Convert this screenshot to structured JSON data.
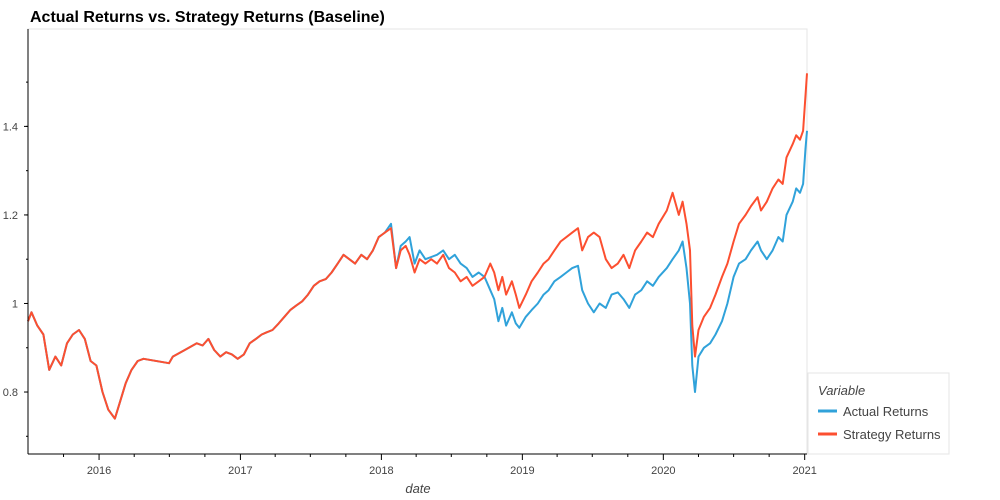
{
  "chart_data": {
    "type": "line",
    "title": "Actual Returns vs. Strategy Returns (Baseline)",
    "xlabel": "date",
    "ylabel": "",
    "xlim": [
      "2015-07-01",
      "2021-01-07"
    ],
    "ylim": [
      0.66,
      1.62
    ],
    "x_ticks": [
      "2016",
      "2017",
      "2018",
      "2019",
      "2020",
      "2021"
    ],
    "y_ticks": [
      "0.8",
      "1",
      "1.2",
      "1.4"
    ],
    "grid": false,
    "legend_placement": "bottom-right",
    "legend_title": "Variable",
    "series": [
      {
        "name": "Actual Returns",
        "color": "#30a2da",
        "points": [
          [
            "2015-07-01",
            0.96
          ],
          [
            "2015-07-10",
            0.98
          ],
          [
            "2015-07-25",
            0.95
          ],
          [
            "2015-08-10",
            0.93
          ],
          [
            "2015-08-25",
            0.85
          ],
          [
            "2015-09-10",
            0.88
          ],
          [
            "2015-09-25",
            0.86
          ],
          [
            "2015-10-10",
            0.91
          ],
          [
            "2015-10-25",
            0.93
          ],
          [
            "2015-11-10",
            0.94
          ],
          [
            "2015-11-25",
            0.92
          ],
          [
            "2015-12-10",
            0.87
          ],
          [
            "2015-12-25",
            0.86
          ],
          [
            "2016-01-10",
            0.8
          ],
          [
            "2016-01-25",
            0.76
          ],
          [
            "2016-02-11",
            0.74
          ],
          [
            "2016-02-25",
            0.78
          ],
          [
            "2016-03-10",
            0.82
          ],
          [
            "2016-03-25",
            0.85
          ],
          [
            "2016-04-10",
            0.87
          ],
          [
            "2016-04-25",
            0.875
          ],
          [
            "2016-06-30",
            0.865
          ],
          [
            "2016-07-10",
            0.88
          ],
          [
            "2016-08-10",
            0.895
          ],
          [
            "2016-09-10",
            0.91
          ],
          [
            "2016-09-25",
            0.905
          ],
          [
            "2016-10-10",
            0.92
          ],
          [
            "2016-10-25",
            0.895
          ],
          [
            "2016-11-10",
            0.88
          ],
          [
            "2016-11-25",
            0.89
          ],
          [
            "2016-12-10",
            0.885
          ],
          [
            "2016-12-25",
            0.875
          ],
          [
            "2017-01-10",
            0.885
          ],
          [
            "2017-01-25",
            0.91
          ],
          [
            "2017-02-10",
            0.92
          ],
          [
            "2017-02-25",
            0.93
          ],
          [
            "2017-03-10",
            0.935
          ],
          [
            "2017-03-25",
            0.94
          ],
          [
            "2017-04-10",
            0.955
          ],
          [
            "2017-04-25",
            0.97
          ],
          [
            "2017-05-10",
            0.985
          ],
          [
            "2017-05-25",
            0.995
          ],
          [
            "2017-06-10",
            1.005
          ],
          [
            "2017-06-25",
            1.02
          ],
          [
            "2017-07-10",
            1.04
          ],
          [
            "2017-07-25",
            1.05
          ],
          [
            "2017-08-10",
            1.055
          ],
          [
            "2017-08-25",
            1.07
          ],
          [
            "2017-09-10",
            1.09
          ],
          [
            "2017-09-25",
            1.11
          ],
          [
            "2017-10-10",
            1.1
          ],
          [
            "2017-10-25",
            1.09
          ],
          [
            "2017-11-10",
            1.11
          ],
          [
            "2017-11-25",
            1.1
          ],
          [
            "2017-12-10",
            1.12
          ],
          [
            "2017-12-25",
            1.15
          ],
          [
            "2018-01-10",
            1.16
          ],
          [
            "2018-01-26",
            1.18
          ],
          [
            "2018-02-08",
            1.08
          ],
          [
            "2018-02-20",
            1.13
          ],
          [
            "2018-03-05",
            1.14
          ],
          [
            "2018-03-15",
            1.15
          ],
          [
            "2018-03-28",
            1.09
          ],
          [
            "2018-04-10",
            1.12
          ],
          [
            "2018-04-25",
            1.1
          ],
          [
            "2018-05-10",
            1.105
          ],
          [
            "2018-05-25",
            1.11
          ],
          [
            "2018-06-10",
            1.12
          ],
          [
            "2018-06-25",
            1.1
          ],
          [
            "2018-07-10",
            1.11
          ],
          [
            "2018-07-25",
            1.09
          ],
          [
            "2018-08-10",
            1.08
          ],
          [
            "2018-08-25",
            1.06
          ],
          [
            "2018-09-10",
            1.07
          ],
          [
            "2018-09-25",
            1.06
          ],
          [
            "2018-10-10",
            1.03
          ],
          [
            "2018-10-20",
            1.01
          ],
          [
            "2018-10-31",
            0.96
          ],
          [
            "2018-11-10",
            0.99
          ],
          [
            "2018-11-20",
            0.95
          ],
          [
            "2018-12-05",
            0.98
          ],
          [
            "2018-12-15",
            0.955
          ],
          [
            "2018-12-24",
            0.945
          ],
          [
            "2019-01-10",
            0.97
          ],
          [
            "2019-01-25",
            0.985
          ],
          [
            "2019-02-10",
            1.0
          ],
          [
            "2019-02-25",
            1.02
          ],
          [
            "2019-03-10",
            1.03
          ],
          [
            "2019-03-25",
            1.05
          ],
          [
            "2019-04-10",
            1.06
          ],
          [
            "2019-04-25",
            1.07
          ],
          [
            "2019-05-10",
            1.08
          ],
          [
            "2019-05-25",
            1.085
          ],
          [
            "2019-06-05",
            1.03
          ],
          [
            "2019-06-20",
            1.0
          ],
          [
            "2019-07-05",
            0.98
          ],
          [
            "2019-07-20",
            1.0
          ],
          [
            "2019-08-05",
            0.99
          ],
          [
            "2019-08-20",
            1.02
          ],
          [
            "2019-09-05",
            1.025
          ],
          [
            "2019-09-20",
            1.01
          ],
          [
            "2019-10-05",
            0.99
          ],
          [
            "2019-10-20",
            1.02
          ],
          [
            "2019-11-05",
            1.03
          ],
          [
            "2019-11-20",
            1.05
          ],
          [
            "2019-12-05",
            1.04
          ],
          [
            "2019-12-20",
            1.06
          ],
          [
            "2020-01-10",
            1.08
          ],
          [
            "2020-01-25",
            1.1
          ],
          [
            "2020-02-10",
            1.12
          ],
          [
            "2020-02-20",
            1.14
          ],
          [
            "2020-03-01",
            1.08
          ],
          [
            "2020-03-10",
            1.0
          ],
          [
            "2020-03-16",
            0.86
          ],
          [
            "2020-03-23",
            0.8
          ],
          [
            "2020-04-01",
            0.88
          ],
          [
            "2020-04-15",
            0.9
          ],
          [
            "2020-05-01",
            0.91
          ],
          [
            "2020-05-15",
            0.93
          ],
          [
            "2020-06-01",
            0.96
          ],
          [
            "2020-06-15",
            1.0
          ],
          [
            "2020-07-01",
            1.06
          ],
          [
            "2020-07-15",
            1.09
          ],
          [
            "2020-08-01",
            1.1
          ],
          [
            "2020-08-15",
            1.12
          ],
          [
            "2020-09-01",
            1.14
          ],
          [
            "2020-09-10",
            1.12
          ],
          [
            "2020-09-25",
            1.1
          ],
          [
            "2020-10-10",
            1.12
          ],
          [
            "2020-10-25",
            1.15
          ],
          [
            "2020-11-05",
            1.14
          ],
          [
            "2020-11-15",
            1.2
          ],
          [
            "2020-12-01",
            1.23
          ],
          [
            "2020-12-10",
            1.26
          ],
          [
            "2020-12-20",
            1.25
          ],
          [
            "2020-12-28",
            1.27
          ],
          [
            "2021-01-03",
            1.35
          ],
          [
            "2021-01-07",
            1.39
          ]
        ]
      },
      {
        "name": "Strategy Returns",
        "color": "#fc4f30",
        "points": [
          [
            "2015-07-01",
            0.96
          ],
          [
            "2015-07-10",
            0.98
          ],
          [
            "2015-07-25",
            0.95
          ],
          [
            "2015-08-10",
            0.93
          ],
          [
            "2015-08-25",
            0.85
          ],
          [
            "2015-09-10",
            0.88
          ],
          [
            "2015-09-25",
            0.86
          ],
          [
            "2015-10-10",
            0.91
          ],
          [
            "2015-10-25",
            0.93
          ],
          [
            "2015-11-10",
            0.94
          ],
          [
            "2015-11-25",
            0.92
          ],
          [
            "2015-12-10",
            0.87
          ],
          [
            "2015-12-25",
            0.86
          ],
          [
            "2016-01-10",
            0.8
          ],
          [
            "2016-01-25",
            0.76
          ],
          [
            "2016-02-11",
            0.74
          ],
          [
            "2016-02-25",
            0.78
          ],
          [
            "2016-03-10",
            0.82
          ],
          [
            "2016-03-25",
            0.85
          ],
          [
            "2016-04-10",
            0.87
          ],
          [
            "2016-04-25",
            0.875
          ],
          [
            "2016-06-30",
            0.865
          ],
          [
            "2016-07-10",
            0.88
          ],
          [
            "2016-08-10",
            0.895
          ],
          [
            "2016-09-10",
            0.91
          ],
          [
            "2016-09-25",
            0.905
          ],
          [
            "2016-10-10",
            0.92
          ],
          [
            "2016-10-25",
            0.895
          ],
          [
            "2016-11-10",
            0.88
          ],
          [
            "2016-11-25",
            0.89
          ],
          [
            "2016-12-10",
            0.885
          ],
          [
            "2016-12-25",
            0.875
          ],
          [
            "2017-01-10",
            0.885
          ],
          [
            "2017-01-25",
            0.91
          ],
          [
            "2017-02-10",
            0.92
          ],
          [
            "2017-02-25",
            0.93
          ],
          [
            "2017-03-10",
            0.935
          ],
          [
            "2017-03-25",
            0.94
          ],
          [
            "2017-04-10",
            0.955
          ],
          [
            "2017-04-25",
            0.97
          ],
          [
            "2017-05-10",
            0.985
          ],
          [
            "2017-05-25",
            0.995
          ],
          [
            "2017-06-10",
            1.005
          ],
          [
            "2017-06-25",
            1.02
          ],
          [
            "2017-07-10",
            1.04
          ],
          [
            "2017-07-25",
            1.05
          ],
          [
            "2017-08-10",
            1.055
          ],
          [
            "2017-08-25",
            1.07
          ],
          [
            "2017-09-10",
            1.09
          ],
          [
            "2017-09-25",
            1.11
          ],
          [
            "2017-10-10",
            1.1
          ],
          [
            "2017-10-25",
            1.09
          ],
          [
            "2017-11-10",
            1.11
          ],
          [
            "2017-11-25",
            1.1
          ],
          [
            "2017-12-10",
            1.12
          ],
          [
            "2017-12-25",
            1.15
          ],
          [
            "2018-01-10",
            1.16
          ],
          [
            "2018-01-26",
            1.17
          ],
          [
            "2018-02-08",
            1.08
          ],
          [
            "2018-02-20",
            1.12
          ],
          [
            "2018-03-05",
            1.13
          ],
          [
            "2018-03-15",
            1.11
          ],
          [
            "2018-03-28",
            1.07
          ],
          [
            "2018-04-10",
            1.1
          ],
          [
            "2018-04-25",
            1.09
          ],
          [
            "2018-05-10",
            1.1
          ],
          [
            "2018-05-25",
            1.09
          ],
          [
            "2018-06-10",
            1.11
          ],
          [
            "2018-06-25",
            1.08
          ],
          [
            "2018-07-10",
            1.07
          ],
          [
            "2018-07-25",
            1.05
          ],
          [
            "2018-08-10",
            1.06
          ],
          [
            "2018-08-25",
            1.04
          ],
          [
            "2018-09-10",
            1.05
          ],
          [
            "2018-09-25",
            1.06
          ],
          [
            "2018-10-10",
            1.09
          ],
          [
            "2018-10-20",
            1.07
          ],
          [
            "2018-10-31",
            1.03
          ],
          [
            "2018-11-10",
            1.06
          ],
          [
            "2018-11-20",
            1.02
          ],
          [
            "2018-12-05",
            1.05
          ],
          [
            "2018-12-15",
            1.02
          ],
          [
            "2018-12-24",
            0.99
          ],
          [
            "2019-01-10",
            1.02
          ],
          [
            "2019-01-25",
            1.05
          ],
          [
            "2019-02-10",
            1.07
          ],
          [
            "2019-02-25",
            1.09
          ],
          [
            "2019-03-10",
            1.1
          ],
          [
            "2019-03-25",
            1.12
          ],
          [
            "2019-04-10",
            1.14
          ],
          [
            "2019-04-25",
            1.15
          ],
          [
            "2019-05-10",
            1.16
          ],
          [
            "2019-05-25",
            1.17
          ],
          [
            "2019-06-05",
            1.12
          ],
          [
            "2019-06-20",
            1.15
          ],
          [
            "2019-07-05",
            1.16
          ],
          [
            "2019-07-20",
            1.15
          ],
          [
            "2019-08-05",
            1.1
          ],
          [
            "2019-08-20",
            1.08
          ],
          [
            "2019-09-05",
            1.09
          ],
          [
            "2019-09-20",
            1.11
          ],
          [
            "2019-10-05",
            1.08
          ],
          [
            "2019-10-20",
            1.12
          ],
          [
            "2019-11-05",
            1.14
          ],
          [
            "2019-11-20",
            1.16
          ],
          [
            "2019-12-05",
            1.15
          ],
          [
            "2019-12-20",
            1.18
          ],
          [
            "2020-01-10",
            1.21
          ],
          [
            "2020-01-25",
            1.25
          ],
          [
            "2020-02-10",
            1.2
          ],
          [
            "2020-02-20",
            1.23
          ],
          [
            "2020-03-01",
            1.18
          ],
          [
            "2020-03-10",
            1.12
          ],
          [
            "2020-03-16",
            0.95
          ],
          [
            "2020-03-23",
            0.88
          ],
          [
            "2020-04-01",
            0.94
          ],
          [
            "2020-04-15",
            0.97
          ],
          [
            "2020-05-01",
            0.99
          ],
          [
            "2020-05-15",
            1.02
          ],
          [
            "2020-06-01",
            1.06
          ],
          [
            "2020-06-15",
            1.09
          ],
          [
            "2020-07-01",
            1.14
          ],
          [
            "2020-07-15",
            1.18
          ],
          [
            "2020-08-01",
            1.2
          ],
          [
            "2020-08-15",
            1.22
          ],
          [
            "2020-09-01",
            1.24
          ],
          [
            "2020-09-10",
            1.21
          ],
          [
            "2020-09-25",
            1.23
          ],
          [
            "2020-10-10",
            1.26
          ],
          [
            "2020-10-25",
            1.28
          ],
          [
            "2020-11-05",
            1.27
          ],
          [
            "2020-11-15",
            1.33
          ],
          [
            "2020-12-01",
            1.36
          ],
          [
            "2020-12-10",
            1.38
          ],
          [
            "2020-12-20",
            1.37
          ],
          [
            "2020-12-28",
            1.39
          ],
          [
            "2021-01-03",
            1.47
          ],
          [
            "2021-01-07",
            1.52
          ]
        ]
      }
    ]
  }
}
